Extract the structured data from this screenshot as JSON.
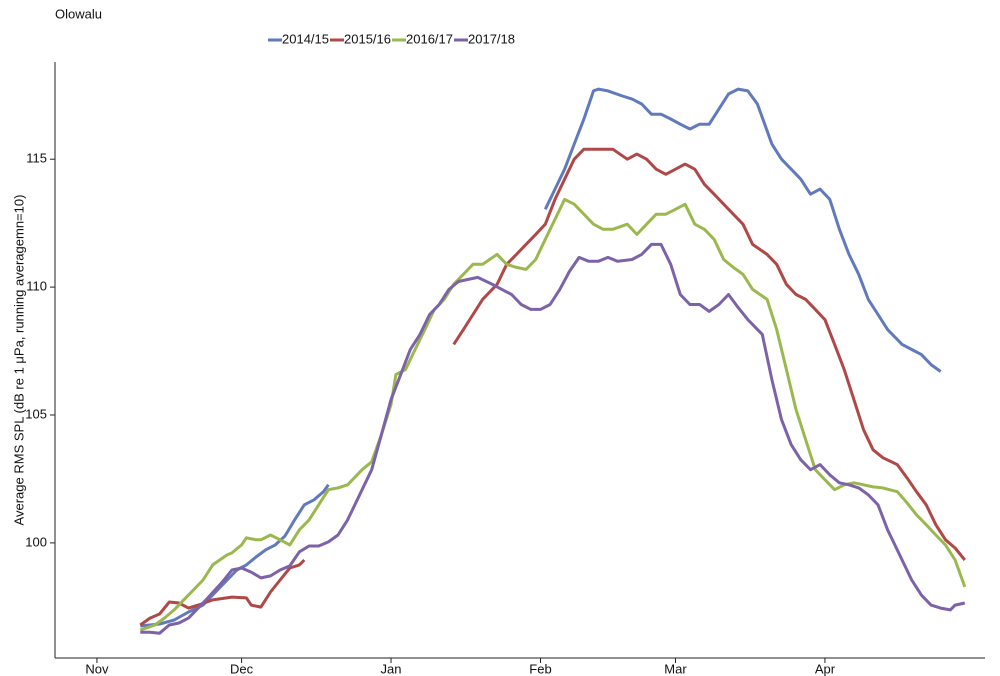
{
  "chart_data": {
    "type": "line",
    "title": "Olowalu",
    "y_label": "Average RMS SPL (dB re 1 μPa, running averagemn=10)",
    "legend": "top",
    "xlim": [
      -8.7,
      184.2
    ],
    "xticks": [
      {
        "value": 0,
        "label": "Nov"
      },
      {
        "value": 30,
        "label": "Dec"
      },
      {
        "value": 61,
        "label": "Jan"
      },
      {
        "value": 92,
        "label": "Feb"
      },
      {
        "value": 120,
        "label": "Mar"
      },
      {
        "value": 151,
        "label": "Apr"
      }
    ],
    "ylim": [
      95.5,
      118.8
    ],
    "yticks": [
      100,
      105,
      110,
      115
    ],
    "series": [
      {
        "name": "2014/15",
        "color": "#6179bd",
        "x": [
          9,
          13,
          16,
          19,
          22,
          25,
          29,
          31,
          33,
          35,
          37,
          39,
          41,
          43,
          45,
          47,
          48,
          70,
          93,
          95,
          97,
          99,
          101,
          103,
          104,
          106,
          109,
          111,
          113,
          115,
          117,
          119,
          121,
          123,
          125,
          127,
          129,
          131,
          133,
          135,
          137,
          140,
          142,
          144,
          146,
          148,
          150,
          152,
          154,
          156,
          158,
          160,
          162,
          164,
          167,
          169,
          171,
          173,
          175
        ],
        "values": [
          96.75,
          96.83,
          96.98,
          97.3,
          97.57,
          98.16,
          98.94,
          99.14,
          99.45,
          99.73,
          99.92,
          100.27,
          100.9,
          101.49,
          101.68,
          102.0,
          102.27,
          null,
          113.04,
          113.83,
          114.61,
          115.59,
          116.57,
          117.67,
          117.74,
          117.67,
          117.47,
          117.35,
          117.16,
          116.76,
          116.76,
          116.57,
          116.37,
          116.18,
          116.37,
          116.37,
          116.96,
          117.55,
          117.74,
          117.67,
          117.16,
          115.59,
          115.0,
          114.61,
          114.22,
          113.63,
          113.83,
          113.43,
          112.26,
          111.28,
          110.5,
          109.52,
          108.93,
          108.34,
          107.76,
          107.56,
          107.36,
          106.97,
          106.7
        ]
      },
      {
        "name": "2015/16",
        "color": "#b04848",
        "x": [
          9,
          11,
          13,
          15,
          17,
          19,
          21,
          24,
          28,
          31,
          32,
          34,
          36,
          38,
          40,
          42,
          43,
          60,
          74,
          76,
          78,
          80,
          83,
          85,
          87,
          89,
          91,
          93,
          95,
          97,
          99,
          101,
          103,
          105,
          107,
          110,
          112,
          114,
          116,
          118,
          120,
          122,
          124,
          126,
          128,
          130,
          132,
          134,
          136,
          139,
          141,
          143,
          145,
          147,
          149,
          151,
          153,
          155,
          157,
          159,
          161,
          163,
          166,
          168,
          170,
          172,
          174,
          176,
          178,
          180
        ],
        "values": [
          96.79,
          97.06,
          97.22,
          97.69,
          97.65,
          97.45,
          97.57,
          97.77,
          97.88,
          97.85,
          97.57,
          97.49,
          98.08,
          98.55,
          99.02,
          99.14,
          99.33,
          null,
          107.76,
          108.34,
          108.93,
          109.52,
          110.11,
          110.89,
          111.28,
          111.67,
          112.06,
          112.46,
          113.43,
          114.22,
          115.0,
          115.39,
          115.39,
          115.39,
          115.39,
          115.0,
          115.2,
          115.0,
          114.61,
          114.41,
          114.61,
          114.81,
          114.61,
          114.02,
          113.63,
          113.24,
          112.85,
          112.46,
          111.67,
          111.28,
          110.89,
          110.11,
          109.71,
          109.52,
          109.13,
          108.73,
          107.76,
          106.78,
          105.6,
          104.43,
          103.64,
          103.33,
          103.06,
          102.55,
          102.0,
          101.49,
          100.71,
          100.12,
          99.8,
          99.33
        ]
      },
      {
        "name": "2016/17",
        "color": "#9bb84e",
        "x": [
          9,
          12,
          14,
          16,
          18,
          20,
          22,
          24,
          27,
          28,
          30,
          31,
          33,
          34,
          36,
          38,
          40,
          42,
          44,
          46,
          48,
          50,
          52,
          55,
          57,
          59,
          61,
          62,
          64,
          66,
          68,
          70,
          72,
          74,
          76,
          78,
          80,
          83,
          85,
          87,
          89,
          91,
          93,
          95,
          97,
          99,
          101,
          103,
          105,
          107,
          110,
          112,
          114,
          116,
          118,
          120,
          122,
          124,
          126,
          128,
          130,
          132,
          134,
          136,
          139,
          141,
          143,
          145,
          147,
          149,
          151,
          153,
          155,
          157,
          159,
          161,
          163,
          166,
          168,
          170,
          172,
          174,
          176,
          178,
          180
        ],
        "values": [
          96.59,
          96.79,
          97.06,
          97.38,
          97.77,
          98.16,
          98.55,
          99.14,
          99.53,
          99.61,
          99.92,
          100.2,
          100.12,
          100.12,
          100.31,
          100.12,
          99.92,
          100.51,
          100.9,
          101.49,
          102.08,
          102.15,
          102.27,
          102.86,
          103.17,
          104.23,
          105.41,
          106.58,
          106.78,
          107.56,
          108.34,
          109.13,
          109.52,
          110.11,
          110.5,
          110.89,
          110.89,
          111.28,
          110.89,
          110.77,
          110.69,
          111.08,
          111.87,
          112.65,
          113.43,
          113.24,
          112.85,
          112.46,
          112.26,
          112.26,
          112.46,
          112.06,
          112.46,
          112.85,
          112.85,
          113.04,
          113.24,
          112.46,
          112.26,
          111.87,
          111.08,
          110.77,
          110.5,
          109.91,
          109.52,
          108.34,
          106.78,
          105.21,
          104.03,
          102.86,
          102.47,
          102.08,
          102.27,
          102.35,
          102.27,
          102.19,
          102.15,
          102.0,
          101.57,
          101.1,
          100.71,
          100.31,
          99.92,
          99.33,
          98.28
        ]
      },
      {
        "name": "2017/18",
        "color": "#7c62a9",
        "x": [
          9,
          11,
          13,
          15,
          17,
          19,
          21,
          23,
          26,
          28,
          30,
          32,
          34,
          36,
          38,
          40,
          42,
          44,
          46,
          48,
          50,
          52,
          55,
          57,
          59,
          61,
          63,
          65,
          67,
          69,
          71,
          73,
          75,
          77,
          79,
          82,
          84,
          86,
          88,
          90,
          92,
          94,
          96,
          98,
          100,
          102,
          104,
          106,
          108,
          111,
          113,
          115,
          117,
          119,
          121,
          123,
          125,
          127,
          129,
          131,
          133,
          135,
          138,
          140,
          142,
          144,
          146,
          148,
          150,
          152,
          154,
          156,
          158,
          160,
          162,
          164,
          167,
          169,
          171,
          173,
          175,
          177,
          178,
          180
        ],
        "values": [
          96.51,
          96.51,
          96.47,
          96.79,
          96.87,
          97.06,
          97.45,
          97.85,
          98.47,
          98.94,
          99.02,
          98.86,
          98.63,
          98.71,
          98.94,
          99.1,
          99.65,
          99.88,
          99.88,
          100.04,
          100.31,
          100.9,
          102.08,
          102.86,
          104.23,
          105.6,
          106.58,
          107.56,
          108.15,
          108.93,
          109.32,
          109.91,
          110.22,
          110.3,
          110.38,
          110.11,
          109.91,
          109.71,
          109.32,
          109.13,
          109.13,
          109.32,
          109.91,
          110.61,
          111.16,
          111.01,
          111.01,
          111.16,
          111.01,
          111.08,
          111.28,
          111.67,
          111.67,
          110.89,
          109.71,
          109.32,
          109.32,
          109.05,
          109.32,
          109.71,
          109.2,
          108.73,
          108.15,
          106.38,
          104.82,
          103.84,
          103.25,
          102.86,
          103.06,
          102.66,
          102.35,
          102.27,
          102.15,
          101.88,
          101.49,
          100.51,
          99.33,
          98.55,
          97.96,
          97.57,
          97.45,
          97.38,
          97.57,
          97.65
        ]
      }
    ]
  }
}
